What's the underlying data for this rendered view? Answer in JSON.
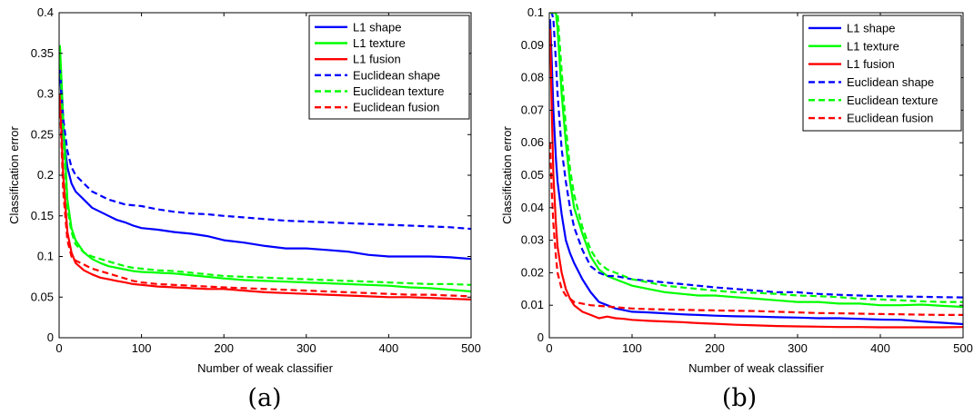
{
  "chart_data": [
    {
      "type": "line",
      "panel_label": "(a)",
      "xlabel": "Number of weak classifier",
      "ylabel": "Classification error",
      "xlim": [
        0,
        500
      ],
      "ylim": [
        0,
        0.4
      ],
      "xticks": [
        0,
        100,
        200,
        300,
        400,
        500
      ],
      "yticks": [
        0,
        0.05,
        0.1,
        0.15,
        0.2,
        0.25,
        0.3,
        0.35,
        0.4
      ],
      "ytick_labels": [
        "0",
        "0.05",
        "0.1",
        "0.15",
        "0.2",
        "0.25",
        "0.3",
        "0.35",
        "0.4"
      ],
      "legend_position": "top-right",
      "series": [
        {
          "name": "L1 shape",
          "color": "#0000ff",
          "dash": "solid",
          "x": [
            1,
            5,
            10,
            15,
            20,
            30,
            40,
            50,
            60,
            70,
            80,
            90,
            100,
            120,
            140,
            160,
            180,
            200,
            225,
            250,
            275,
            300,
            325,
            350,
            375,
            400,
            425,
            450,
            475,
            500
          ],
          "y": [
            0.33,
            0.25,
            0.21,
            0.19,
            0.18,
            0.17,
            0.16,
            0.155,
            0.15,
            0.145,
            0.142,
            0.138,
            0.135,
            0.133,
            0.13,
            0.128,
            0.125,
            0.12,
            0.117,
            0.113,
            0.11,
            0.11,
            0.108,
            0.106,
            0.102,
            0.1,
            0.1,
            0.1,
            0.099,
            0.097
          ]
        },
        {
          "name": "L1 texture",
          "color": "#00ff00",
          "dash": "solid",
          "x": [
            1,
            5,
            10,
            15,
            20,
            30,
            40,
            50,
            60,
            70,
            80,
            90,
            100,
            120,
            140,
            160,
            180,
            200,
            225,
            250,
            275,
            300,
            325,
            350,
            375,
            400,
            425,
            450,
            475,
            500
          ],
          "y": [
            0.36,
            0.27,
            0.17,
            0.135,
            0.12,
            0.105,
            0.097,
            0.092,
            0.088,
            0.086,
            0.084,
            0.082,
            0.081,
            0.08,
            0.079,
            0.077,
            0.075,
            0.073,
            0.071,
            0.07,
            0.069,
            0.068,
            0.067,
            0.066,
            0.065,
            0.064,
            0.062,
            0.061,
            0.059,
            0.057
          ]
        },
        {
          "name": "L1 fusion",
          "color": "#ff0000",
          "dash": "solid",
          "x": [
            1,
            5,
            10,
            15,
            20,
            30,
            40,
            50,
            60,
            70,
            80,
            90,
            100,
            120,
            140,
            160,
            180,
            200,
            225,
            250,
            275,
            300,
            325,
            350,
            375,
            400,
            425,
            450,
            475,
            500
          ],
          "y": [
            0.3,
            0.2,
            0.13,
            0.105,
            0.092,
            0.083,
            0.078,
            0.074,
            0.072,
            0.07,
            0.068,
            0.066,
            0.065,
            0.063,
            0.062,
            0.061,
            0.06,
            0.06,
            0.058,
            0.056,
            0.055,
            0.054,
            0.053,
            0.052,
            0.051,
            0.05,
            0.05,
            0.049,
            0.048,
            0.047
          ]
        },
        {
          "name": "Euclidean shape",
          "color": "#0000ff",
          "dash": "dashed",
          "x": [
            1,
            5,
            10,
            15,
            20,
            30,
            40,
            50,
            60,
            70,
            80,
            90,
            100,
            120,
            140,
            160,
            180,
            200,
            225,
            250,
            275,
            300,
            325,
            350,
            375,
            400,
            425,
            450,
            475,
            500
          ],
          "y": [
            0.33,
            0.27,
            0.23,
            0.21,
            0.2,
            0.19,
            0.18,
            0.175,
            0.17,
            0.167,
            0.164,
            0.163,
            0.162,
            0.158,
            0.155,
            0.153,
            0.152,
            0.15,
            0.148,
            0.146,
            0.144,
            0.143,
            0.142,
            0.141,
            0.14,
            0.139,
            0.138,
            0.137,
            0.136,
            0.134
          ]
        },
        {
          "name": "Euclidean texture",
          "color": "#00ff00",
          "dash": "dashed",
          "x": [
            1,
            5,
            10,
            15,
            20,
            30,
            40,
            50,
            60,
            70,
            80,
            90,
            100,
            120,
            140,
            160,
            180,
            200,
            225,
            250,
            275,
            300,
            325,
            350,
            375,
            400,
            425,
            450,
            475,
            500
          ],
          "y": [
            0.35,
            0.25,
            0.16,
            0.13,
            0.115,
            0.105,
            0.1,
            0.097,
            0.094,
            0.091,
            0.088,
            0.086,
            0.085,
            0.083,
            0.082,
            0.08,
            0.078,
            0.076,
            0.075,
            0.074,
            0.073,
            0.072,
            0.071,
            0.07,
            0.069,
            0.068,
            0.067,
            0.066,
            0.066,
            0.065
          ]
        },
        {
          "name": "Euclidean fusion",
          "color": "#ff0000",
          "dash": "dashed",
          "x": [
            1,
            5,
            10,
            15,
            20,
            30,
            40,
            50,
            60,
            70,
            80,
            90,
            100,
            120,
            140,
            160,
            180,
            200,
            225,
            250,
            275,
            300,
            325,
            350,
            375,
            400,
            425,
            450,
            475,
            500
          ],
          "y": [
            0.29,
            0.18,
            0.12,
            0.1,
            0.095,
            0.09,
            0.085,
            0.082,
            0.079,
            0.076,
            0.073,
            0.07,
            0.068,
            0.066,
            0.065,
            0.064,
            0.063,
            0.062,
            0.061,
            0.06,
            0.059,
            0.058,
            0.057,
            0.056,
            0.055,
            0.054,
            0.053,
            0.053,
            0.052,
            0.051
          ]
        }
      ]
    },
    {
      "type": "line",
      "panel_label": "(b)",
      "xlabel": "Number of weak classifier",
      "ylabel": "Classification error",
      "xlim": [
        0,
        500
      ],
      "ylim": [
        0,
        0.1
      ],
      "xticks": [
        0,
        100,
        200,
        300,
        400,
        500
      ],
      "yticks": [
        0,
        0.01,
        0.02,
        0.03,
        0.04,
        0.05,
        0.06,
        0.07,
        0.08,
        0.09,
        0.1
      ],
      "ytick_labels": [
        "0",
        "0.01",
        "0.02",
        "0.03",
        "0.04",
        "0.05",
        "0.06",
        "0.07",
        "0.08",
        "0.09",
        "0.1"
      ],
      "legend_position": "top-right",
      "series": [
        {
          "name": "L1 shape",
          "color": "#0000ff",
          "dash": "solid",
          "x": [
            1,
            3,
            5,
            8,
            10,
            15,
            20,
            25,
            30,
            40,
            50,
            60,
            70,
            80,
            90,
            100,
            120,
            140,
            160,
            180,
            200,
            225,
            250,
            275,
            300,
            325,
            350,
            375,
            400,
            425,
            450,
            475,
            500
          ],
          "y": [
            0.098,
            0.085,
            0.07,
            0.055,
            0.048,
            0.038,
            0.03,
            0.026,
            0.023,
            0.018,
            0.014,
            0.011,
            0.01,
            0.009,
            0.0085,
            0.008,
            0.0078,
            0.0075,
            0.0072,
            0.007,
            0.0068,
            0.0066,
            0.0065,
            0.0063,
            0.0062,
            0.006,
            0.006,
            0.0058,
            0.0056,
            0.0055,
            0.005,
            0.0046,
            0.0042
          ]
        },
        {
          "name": "L1 texture",
          "color": "#00ff00",
          "dash": "solid",
          "x": [
            1,
            3,
            5,
            8,
            10,
            15,
            20,
            25,
            30,
            40,
            50,
            60,
            70,
            80,
            90,
            100,
            120,
            140,
            160,
            180,
            200,
            225,
            250,
            275,
            300,
            325,
            350,
            375,
            400,
            425,
            450,
            475,
            500
          ],
          "y": [
            0.1,
            0.1,
            0.1,
            0.1,
            0.095,
            0.075,
            0.06,
            0.048,
            0.04,
            0.032,
            0.025,
            0.021,
            0.019,
            0.018,
            0.017,
            0.016,
            0.015,
            0.014,
            0.0135,
            0.013,
            0.013,
            0.0125,
            0.012,
            0.0115,
            0.011,
            0.011,
            0.0105,
            0.0105,
            0.01,
            0.01,
            0.0102,
            0.0098,
            0.0095
          ]
        },
        {
          "name": "L1 fusion",
          "color": "#ff0000",
          "dash": "solid",
          "x": [
            1,
            3,
            5,
            8,
            10,
            15,
            20,
            25,
            30,
            40,
            50,
            60,
            70,
            80,
            90,
            100,
            120,
            140,
            160,
            180,
            200,
            225,
            250,
            275,
            300,
            325,
            350,
            375,
            400,
            425,
            450,
            475,
            500
          ],
          "y": [
            0.095,
            0.07,
            0.05,
            0.035,
            0.028,
            0.02,
            0.015,
            0.012,
            0.01,
            0.008,
            0.007,
            0.006,
            0.0065,
            0.006,
            0.0058,
            0.0055,
            0.0052,
            0.005,
            0.0048,
            0.0045,
            0.0043,
            0.004,
            0.0038,
            0.0036,
            0.0035,
            0.0034,
            0.0033,
            0.0033,
            0.0032,
            0.0032,
            0.0032,
            0.0032,
            0.0033
          ]
        },
        {
          "name": "Euclidean shape",
          "color": "#0000ff",
          "dash": "dashed",
          "x": [
            1,
            3,
            5,
            8,
            10,
            15,
            20,
            25,
            30,
            40,
            50,
            60,
            70,
            80,
            90,
            100,
            120,
            140,
            160,
            180,
            200,
            225,
            250,
            275,
            300,
            325,
            350,
            375,
            400,
            425,
            450,
            475,
            500
          ],
          "y": [
            0.1,
            0.1,
            0.098,
            0.085,
            0.075,
            0.058,
            0.048,
            0.04,
            0.034,
            0.027,
            0.022,
            0.02,
            0.019,
            0.019,
            0.0185,
            0.018,
            0.0175,
            0.017,
            0.0165,
            0.016,
            0.0155,
            0.015,
            0.0145,
            0.014,
            0.014,
            0.0135,
            0.0132,
            0.013,
            0.0128,
            0.0127,
            0.0126,
            0.0125,
            0.0124
          ]
        },
        {
          "name": "Euclidean texture",
          "color": "#00ff00",
          "dash": "dashed",
          "x": [
            1,
            3,
            5,
            8,
            10,
            15,
            20,
            25,
            30,
            40,
            50,
            60,
            70,
            80,
            90,
            100,
            120,
            140,
            160,
            180,
            200,
            225,
            250,
            275,
            300,
            325,
            350,
            375,
            400,
            425,
            450,
            475,
            500
          ],
          "y": [
            0.1,
            0.1,
            0.1,
            0.1,
            0.1,
            0.082,
            0.065,
            0.052,
            0.044,
            0.034,
            0.027,
            0.023,
            0.021,
            0.02,
            0.019,
            0.018,
            0.017,
            0.016,
            0.0155,
            0.015,
            0.0145,
            0.014,
            0.0138,
            0.0135,
            0.013,
            0.0128,
            0.0125,
            0.012,
            0.0118,
            0.0115,
            0.0112,
            0.011,
            0.011
          ]
        },
        {
          "name": "Euclidean fusion",
          "color": "#ff0000",
          "dash": "dashed",
          "x": [
            1,
            3,
            5,
            8,
            10,
            15,
            20,
            25,
            30,
            40,
            50,
            60,
            70,
            80,
            90,
            100,
            120,
            140,
            160,
            180,
            200,
            225,
            250,
            275,
            300,
            325,
            350,
            375,
            400,
            425,
            450,
            475,
            500
          ],
          "y": [
            0.06,
            0.045,
            0.035,
            0.025,
            0.02,
            0.015,
            0.013,
            0.012,
            0.011,
            0.0105,
            0.01,
            0.0098,
            0.0096,
            0.0094,
            0.0092,
            0.009,
            0.0088,
            0.0087,
            0.0086,
            0.0085,
            0.0084,
            0.0083,
            0.0082,
            0.008,
            0.0078,
            0.0076,
            0.0075,
            0.0074,
            0.0073,
            0.0072,
            0.0071,
            0.007,
            0.007
          ]
        }
      ]
    }
  ]
}
